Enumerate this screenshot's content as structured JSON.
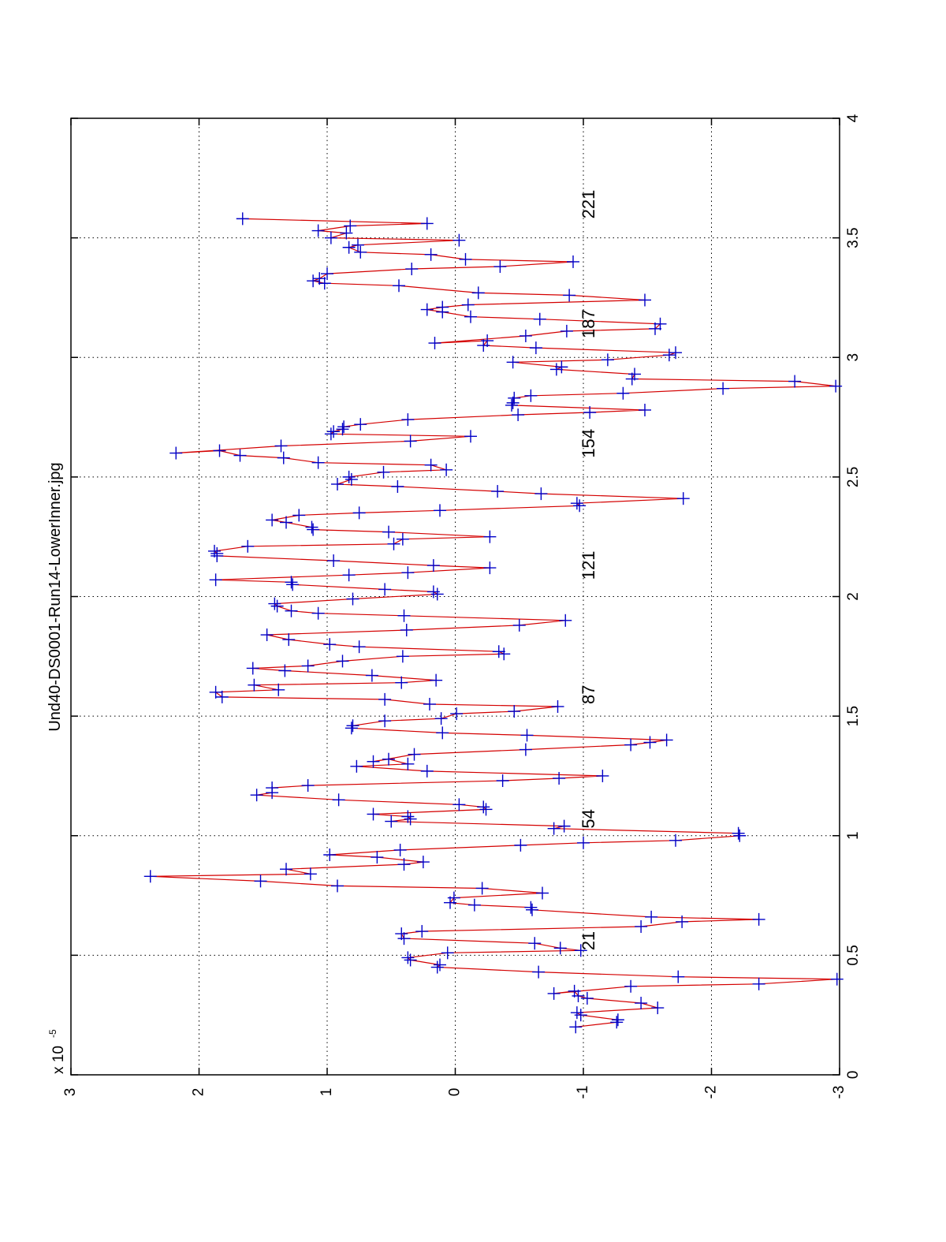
{
  "chart_data": {
    "type": "line",
    "orientation": "rotated-90-ccw",
    "title": "Und40-DS0001-Run14-LowerInner.jpg",
    "xlabel": "",
    "ylabel": "",
    "y_multiplier_label": "x 10",
    "y_multiplier_exponent": "-5",
    "xlim": [
      0,
      4
    ],
    "ylim": [
      -3,
      3
    ],
    "x_ticks": [
      "0",
      "0.5",
      "1",
      "1.5",
      "2",
      "2.5",
      "3",
      "3.5",
      "4"
    ],
    "x_tick_values": [
      0,
      0.5,
      1,
      1.5,
      2,
      2.5,
      3,
      3.5,
      4
    ],
    "y_ticks": [
      "3",
      "2",
      "1",
      "0",
      "-1",
      "-2",
      "-3"
    ],
    "y_tick_values": [
      3,
      2,
      1,
      0,
      -1,
      -2,
      -3
    ],
    "grid": true,
    "series": [
      {
        "name": "trace",
        "line_color": "#d40000",
        "marker_color": "#0000c8",
        "marker": "+",
        "points": [
          [
            0.2,
            -0.94
          ],
          [
            0.22,
            -1.26
          ],
          [
            0.23,
            -1.27
          ],
          [
            0.25,
            -0.98
          ],
          [
            0.26,
            -0.95
          ],
          [
            0.28,
            -1.58
          ],
          [
            0.3,
            -1.45
          ],
          [
            0.32,
            -1.03
          ],
          [
            0.33,
            -0.96
          ],
          [
            0.35,
            -0.93
          ],
          [
            0.34,
            -0.77
          ],
          [
            0.37,
            -1.37
          ],
          [
            0.38,
            -2.37
          ],
          [
            0.4,
            -2.98
          ],
          [
            0.41,
            -1.74
          ],
          [
            0.43,
            -0.65
          ],
          [
            0.45,
            0.14
          ],
          [
            0.46,
            0.12
          ],
          [
            0.48,
            0.35
          ],
          [
            0.49,
            0.37
          ],
          [
            0.51,
            0.06
          ],
          [
            0.52,
            -0.98
          ],
          [
            0.53,
            -0.82
          ],
          [
            0.55,
            -0.62
          ],
          [
            0.57,
            0.4
          ],
          [
            0.59,
            0.42
          ],
          [
            0.6,
            0.26
          ],
          [
            0.62,
            -1.45
          ],
          [
            0.64,
            -1.77
          ],
          [
            0.65,
            -2.37
          ],
          [
            0.66,
            -1.53
          ],
          [
            0.69,
            -0.6
          ],
          [
            0.7,
            -0.59
          ],
          [
            0.71,
            -0.15
          ],
          [
            0.72,
            0.04
          ],
          [
            0.74,
            0.01
          ],
          [
            0.76,
            -0.68
          ],
          [
            0.78,
            -0.21
          ],
          [
            0.79,
            0.92
          ],
          [
            0.81,
            1.52
          ],
          [
            0.83,
            2.38
          ],
          [
            0.84,
            1.13
          ],
          [
            0.86,
            1.32
          ],
          [
            0.88,
            0.4
          ],
          [
            0.89,
            0.25
          ],
          [
            0.91,
            0.61
          ],
          [
            0.92,
            0.98
          ],
          [
            0.94,
            0.43
          ],
          [
            0.96,
            -0.51
          ],
          [
            0.97,
            -1.0
          ],
          [
            0.98,
            -1.72
          ],
          [
            1.0,
            -2.22
          ],
          [
            1.01,
            -2.21
          ],
          [
            1.03,
            -0.77
          ],
          [
            1.04,
            -0.85
          ],
          [
            1.06,
            0.5
          ],
          [
            1.07,
            0.35
          ],
          [
            1.08,
            0.37
          ],
          [
            1.09,
            0.64
          ],
          [
            1.11,
            -0.24
          ],
          [
            1.12,
            -0.22
          ],
          [
            1.13,
            -0.03
          ],
          [
            1.15,
            0.91
          ],
          [
            1.17,
            1.55
          ],
          [
            1.18,
            1.43
          ],
          [
            1.2,
            1.43
          ],
          [
            1.21,
            1.15
          ],
          [
            1.23,
            -0.37
          ],
          [
            1.24,
            -0.81
          ],
          [
            1.25,
            -1.15
          ],
          [
            1.27,
            0.22
          ],
          [
            1.29,
            0.77
          ],
          [
            1.3,
            0.37
          ],
          [
            1.32,
            0.52
          ],
          [
            1.31,
            0.64
          ],
          [
            1.34,
            0.32
          ],
          [
            1.36,
            -0.55
          ],
          [
            1.38,
            -1.37
          ],
          [
            1.39,
            -1.52
          ],
          [
            1.4,
            -1.65
          ],
          [
            1.42,
            -0.56
          ],
          [
            1.43,
            0.1
          ],
          [
            1.45,
            0.81
          ],
          [
            1.46,
            0.8
          ],
          [
            1.48,
            0.55
          ],
          [
            1.49,
            0.11
          ],
          [
            1.51,
            -0.01
          ],
          [
            1.52,
            -0.46
          ],
          [
            1.54,
            -0.8
          ],
          [
            1.55,
            0.2
          ],
          [
            1.57,
            0.55
          ],
          [
            1.58,
            1.82
          ],
          [
            1.6,
            1.87
          ],
          [
            1.61,
            1.38
          ],
          [
            1.63,
            1.57
          ],
          [
            1.64,
            0.42
          ],
          [
            1.65,
            0.15
          ],
          [
            1.67,
            0.65
          ],
          [
            1.69,
            1.33
          ],
          [
            1.7,
            1.58
          ],
          [
            1.71,
            1.15
          ],
          [
            1.73,
            0.88
          ],
          [
            1.75,
            0.41
          ],
          [
            1.76,
            -0.38
          ],
          [
            1.77,
            -0.34
          ],
          [
            1.79,
            0.75
          ],
          [
            1.8,
            0.98
          ],
          [
            1.82,
            1.3
          ],
          [
            1.84,
            1.47
          ],
          [
            1.86,
            0.38
          ],
          [
            1.88,
            -0.5
          ],
          [
            1.9,
            -0.86
          ],
          [
            1.92,
            0.4
          ],
          [
            1.93,
            1.07
          ],
          [
            1.94,
            1.28
          ],
          [
            1.96,
            1.39
          ],
          [
            1.97,
            1.41
          ],
          [
            1.99,
            0.8
          ],
          [
            2.01,
            0.14
          ],
          [
            2.02,
            0.17
          ],
          [
            2.03,
            0.55
          ],
          [
            2.05,
            1.27
          ],
          [
            2.06,
            1.28
          ],
          [
            2.07,
            1.87
          ],
          [
            2.09,
            0.83
          ],
          [
            2.1,
            0.37
          ],
          [
            2.12,
            -0.27
          ],
          [
            2.13,
            0.17
          ],
          [
            2.15,
            0.95
          ],
          [
            2.17,
            1.86
          ],
          [
            2.18,
            1.86
          ],
          [
            2.19,
            1.88
          ],
          [
            2.21,
            1.62
          ],
          [
            2.22,
            0.48
          ],
          [
            2.24,
            0.41
          ],
          [
            2.25,
            -0.27
          ],
          [
            2.27,
            0.52
          ],
          [
            2.28,
            1.11
          ],
          [
            2.29,
            1.12
          ],
          [
            2.31,
            1.32
          ],
          [
            2.32,
            1.43
          ],
          [
            2.34,
            1.22
          ],
          [
            2.35,
            0.75
          ],
          [
            2.36,
            0.12
          ],
          [
            2.38,
            -0.97
          ],
          [
            2.39,
            -0.95
          ],
          [
            2.41,
            -1.78
          ],
          [
            2.43,
            -0.67
          ],
          [
            2.44,
            -0.33
          ],
          [
            2.46,
            0.45
          ],
          [
            2.47,
            0.92
          ],
          [
            2.49,
            0.81
          ],
          [
            2.5,
            0.83
          ],
          [
            2.52,
            0.56
          ],
          [
            2.53,
            0.07
          ],
          [
            2.55,
            0.19
          ],
          [
            2.56,
            1.07
          ],
          [
            2.58,
            1.34
          ],
          [
            2.59,
            1.68
          ],
          [
            2.61,
            1.84
          ],
          [
            2.6,
            2.18
          ],
          [
            2.63,
            1.36
          ],
          [
            2.65,
            0.35
          ],
          [
            2.67,
            -0.12
          ],
          [
            2.68,
            0.97
          ],
          [
            2.69,
            0.95
          ],
          [
            2.7,
            0.88
          ],
          [
            2.71,
            0.87
          ],
          [
            2.72,
            0.74
          ],
          [
            2.74,
            0.37
          ],
          [
            2.76,
            -0.49
          ],
          [
            2.77,
            -1.05
          ],
          [
            2.78,
            -1.48
          ],
          [
            2.8,
            -0.44
          ],
          [
            2.81,
            -0.45
          ],
          [
            2.83,
            -0.46
          ],
          [
            2.84,
            -0.59
          ],
          [
            2.85,
            -1.31
          ],
          [
            2.87,
            -2.09
          ],
          [
            2.88,
            -2.97
          ],
          [
            2.9,
            -2.65
          ],
          [
            2.91,
            -1.38
          ],
          [
            2.93,
            -1.4
          ],
          [
            2.95,
            -0.79
          ],
          [
            2.96,
            -0.83
          ],
          [
            2.98,
            -0.45
          ],
          [
            2.99,
            -1.19
          ],
          [
            3.01,
            -1.67
          ],
          [
            3.02,
            -1.72
          ],
          [
            3.04,
            -0.63
          ],
          [
            3.05,
            -0.22
          ],
          [
            3.07,
            -0.25
          ],
          [
            3.06,
            0.16
          ],
          [
            3.09,
            -0.55
          ],
          [
            3.11,
            -0.87
          ],
          [
            3.12,
            -1.56
          ],
          [
            3.14,
            -1.6
          ],
          [
            3.16,
            -0.66
          ],
          [
            3.17,
            -0.12
          ],
          [
            3.19,
            0.1
          ],
          [
            3.2,
            0.22
          ],
          [
            3.21,
            0.1
          ],
          [
            3.22,
            -0.1
          ],
          [
            3.24,
            -1.48
          ],
          [
            3.26,
            -0.89
          ],
          [
            3.27,
            -0.18
          ],
          [
            3.3,
            0.44
          ],
          [
            3.31,
            1.02
          ],
          [
            3.32,
            1.11
          ],
          [
            3.33,
            1.06
          ],
          [
            3.35,
            1.0
          ],
          [
            3.37,
            0.34
          ],
          [
            3.38,
            -0.35
          ],
          [
            3.4,
            -0.92
          ],
          [
            3.41,
            -0.08
          ],
          [
            3.43,
            0.19
          ],
          [
            3.44,
            0.74
          ],
          [
            3.46,
            0.83
          ],
          [
            3.47,
            0.76
          ],
          [
            3.49,
            -0.03
          ],
          [
            3.5,
            0.97
          ],
          [
            3.52,
            0.85
          ],
          [
            3.53,
            1.07
          ],
          [
            3.55,
            0.82
          ],
          [
            3.56,
            0.22
          ],
          [
            3.58,
            1.66
          ]
        ]
      }
    ],
    "annotations": [
      {
        "text": "21",
        "x": 0.52,
        "y": -1.0
      },
      {
        "text": "54",
        "x": 1.03,
        "y": -1.0
      },
      {
        "text": "87",
        "x": 1.55,
        "y": -1.0
      },
      {
        "text": "121",
        "x": 2.07,
        "y": -1.0
      },
      {
        "text": "154",
        "x": 2.58,
        "y": -1.0
      },
      {
        "text": "187",
        "x": 3.08,
        "y": -1.0
      },
      {
        "text": "221",
        "x": 3.58,
        "y": -1.0
      }
    ]
  }
}
